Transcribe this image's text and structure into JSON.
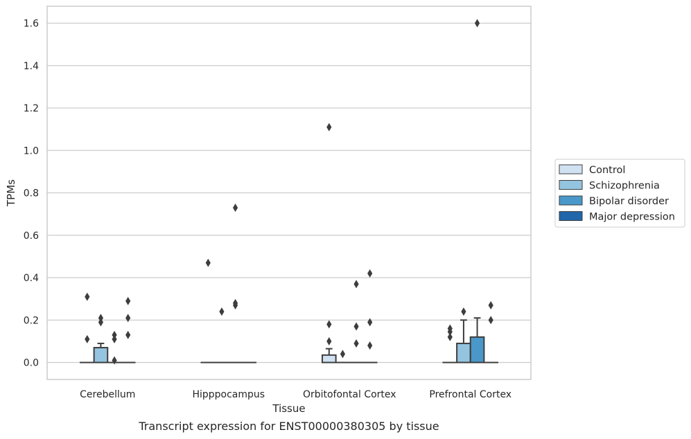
{
  "chart_data": {
    "type": "box",
    "title": "",
    "xlabel": "Tissue",
    "ylabel": "TPMs",
    "caption": "Transcript expression for ENST00000380305 by tissue",
    "ylim": [
      -0.08,
      1.68
    ],
    "yticks": [
      "0.0",
      "0.2",
      "0.4",
      "0.6",
      "0.8",
      "1.0",
      "1.2",
      "1.4",
      "1.6"
    ],
    "categories": [
      "Cerebellum",
      "Hipppocampus",
      "Orbitofontal Cortex",
      "Prefrontal Cortex"
    ],
    "grid": "horizontal",
    "legend_position": "right",
    "series": [
      {
        "name": "Control",
        "color": "#d0e1f2",
        "boxes": [
          {
            "q1": 0,
            "median": 0,
            "q3": 0,
            "whisker_low": 0,
            "whisker_high": 0,
            "outliers": [
              0.11,
              0.31
            ]
          },
          {
            "q1": 0,
            "median": 0,
            "q3": 0,
            "whisker_low": 0,
            "whisker_high": 0,
            "outliers": [
              0.47
            ]
          },
          {
            "q1": 0,
            "median": 0,
            "q3": 0.035,
            "whisker_low": 0,
            "whisker_high": 0.065,
            "outliers": [
              0.1,
              0.18,
              1.11
            ]
          },
          {
            "q1": 0,
            "median": 0,
            "q3": 0,
            "whisker_low": 0,
            "whisker_high": 0,
            "outliers": [
              0.12,
              0.145,
              0.16
            ]
          }
        ]
      },
      {
        "name": "Schizophrenia",
        "color": "#94c4df",
        "boxes": [
          {
            "q1": 0,
            "median": 0,
            "q3": 0.07,
            "whisker_low": 0,
            "whisker_high": 0.09,
            "outliers": [
              0.19,
              0.21
            ]
          },
          {
            "q1": 0,
            "median": 0,
            "q3": 0,
            "whisker_low": 0,
            "whisker_high": 0,
            "outliers": [
              0.24
            ]
          },
          {
            "q1": 0,
            "median": 0,
            "q3": 0,
            "whisker_low": 0,
            "whisker_high": 0,
            "outliers": [
              0.04
            ]
          },
          {
            "q1": 0,
            "median": 0,
            "q3": 0.09,
            "whisker_low": 0,
            "whisker_high": 0.2,
            "outliers": [
              0.24
            ]
          }
        ]
      },
      {
        "name": "Bipolar disorder",
        "color": "#4a98c9",
        "boxes": [
          {
            "q1": 0,
            "median": 0,
            "q3": 0,
            "whisker_low": 0,
            "whisker_high": 0,
            "outliers": [
              0.01,
              0.11,
              0.13
            ]
          },
          {
            "q1": 0,
            "median": 0,
            "q3": 0,
            "whisker_low": 0,
            "whisker_high": 0,
            "outliers": [
              0.27,
              0.28,
              0.73
            ]
          },
          {
            "q1": 0,
            "median": 0,
            "q3": 0,
            "whisker_low": 0,
            "whisker_high": 0,
            "outliers": [
              0.09,
              0.17,
              0.37
            ]
          },
          {
            "q1": 0,
            "median": 0,
            "q3": 0.12,
            "whisker_low": 0,
            "whisker_high": 0.21,
            "outliers": [
              1.6
            ]
          }
        ]
      },
      {
        "name": "Major depression",
        "color": "#2165ab",
        "boxes": [
          {
            "q1": 0,
            "median": 0,
            "q3": 0,
            "whisker_low": 0,
            "whisker_high": 0,
            "outliers": [
              0.13,
              0.21,
              0.29
            ]
          },
          {
            "q1": 0,
            "median": 0,
            "q3": 0,
            "whisker_low": 0,
            "whisker_high": 0,
            "outliers": []
          },
          {
            "q1": 0,
            "median": 0,
            "q3": 0,
            "whisker_low": 0,
            "whisker_high": 0,
            "outliers": [
              0.08,
              0.19,
              0.42
            ]
          },
          {
            "q1": 0,
            "median": 0,
            "q3": 0,
            "whisker_low": 0,
            "whisker_high": 0,
            "outliers": [
              0.2,
              0.27
            ]
          }
        ]
      }
    ]
  }
}
